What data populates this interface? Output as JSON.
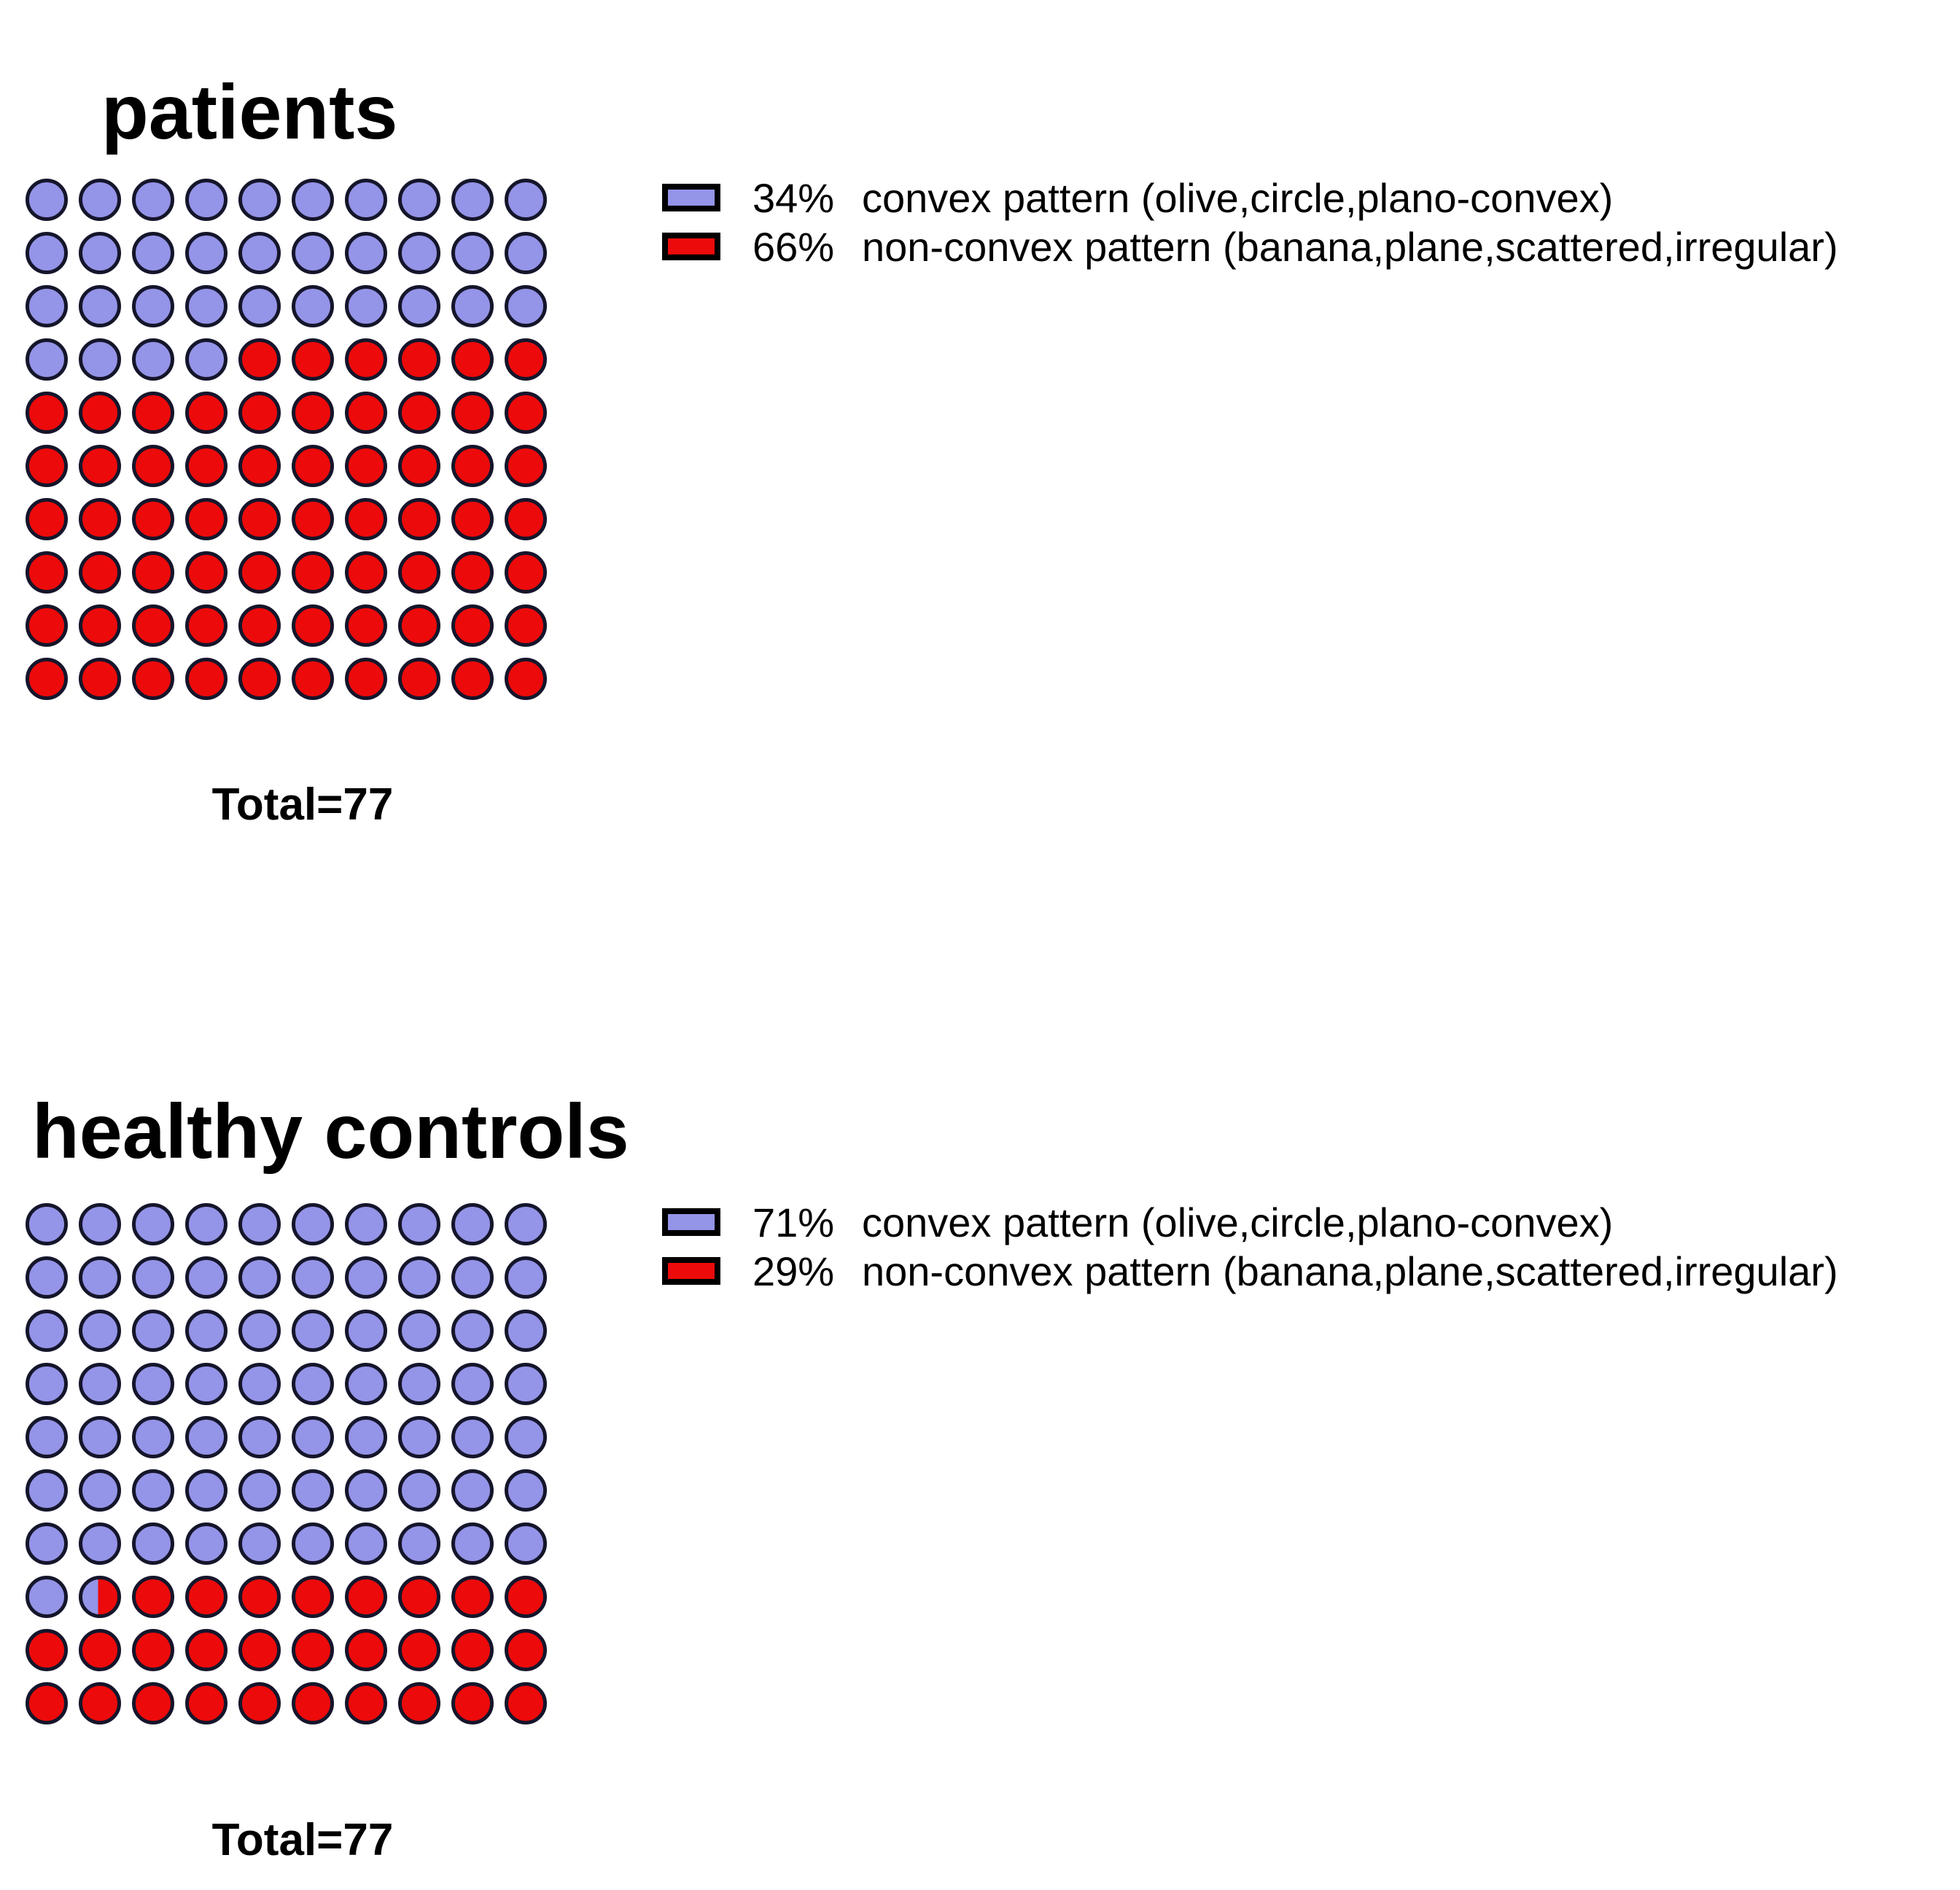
{
  "figure": {
    "background": "#FFFFFF"
  },
  "colors": {
    "convex": "#9494E8",
    "nonconvex": "#ED0A0A",
    "dot_border": "#15152B",
    "swatch_border": "#000000",
    "text": "#000000"
  },
  "panels": [
    {
      "title": "patients",
      "total_label": "Total=77",
      "total": 77,
      "legend": [
        {
          "pct": "34%",
          "label": "convex pattern (olive,circle,plano-convex)",
          "color_key": "convex"
        },
        {
          "pct": "66%",
          "label": "non-convex pattern (banana,plane,scattered,irregular)",
          "color_key": "nonconvex"
        }
      ],
      "grid": {
        "rows": 10,
        "cols": 10,
        "full_convex_dots": 34,
        "split_dot": null
      }
    },
    {
      "title": "healthy controls",
      "total_label": "Total=77",
      "total": 77,
      "legend": [
        {
          "pct": "71%",
          "label": "convex pattern (olive,circle,plano-convex)",
          "color_key": "convex"
        },
        {
          "pct": "29%",
          "label": "non-convex pattern (banana,plane,scattered,irregular)",
          "color_key": "nonconvex"
        }
      ],
      "grid": {
        "rows": 10,
        "cols": 10,
        "full_convex_dots": 71,
        "split_dot": {
          "index": 71,
          "left_color_key": "convex",
          "right_color_key": "nonconvex",
          "left_fraction_pct": 45
        }
      }
    }
  ],
  "chart_data": [
    {
      "type": "pie",
      "render_style": "pictograph-grid-10x10",
      "title": "patients",
      "total": 77,
      "total_label": "Total=77",
      "slices": [
        {
          "label": "convex pattern (olive,circle,plano-convex)",
          "percent": 34,
          "color": "#9494E8"
        },
        {
          "label": "non-convex pattern (banana,plane,scattered,irregular)",
          "percent": 66,
          "color": "#ED0A0A"
        }
      ],
      "grid": {
        "rows": 10,
        "cols": 10,
        "dot_unit_percent": 1,
        "blue_dots": 34,
        "red_dots": 66
      }
    },
    {
      "type": "pie",
      "render_style": "pictograph-grid-10x10",
      "title": "healthy controls",
      "total": 77,
      "total_label": "Total=77",
      "slices": [
        {
          "label": "convex pattern (olive,circle,plano-convex)",
          "percent": 71,
          "color": "#9494E8"
        },
        {
          "label": "non-convex pattern (banana,plane,scattered,irregular)",
          "percent": 29,
          "color": "#ED0A0A"
        }
      ],
      "grid": {
        "rows": 10,
        "cols": 10,
        "dot_unit_percent": 1,
        "blue_dots": 71,
        "half_blue_half_red_dots": 1,
        "red_dots": 28
      }
    }
  ]
}
